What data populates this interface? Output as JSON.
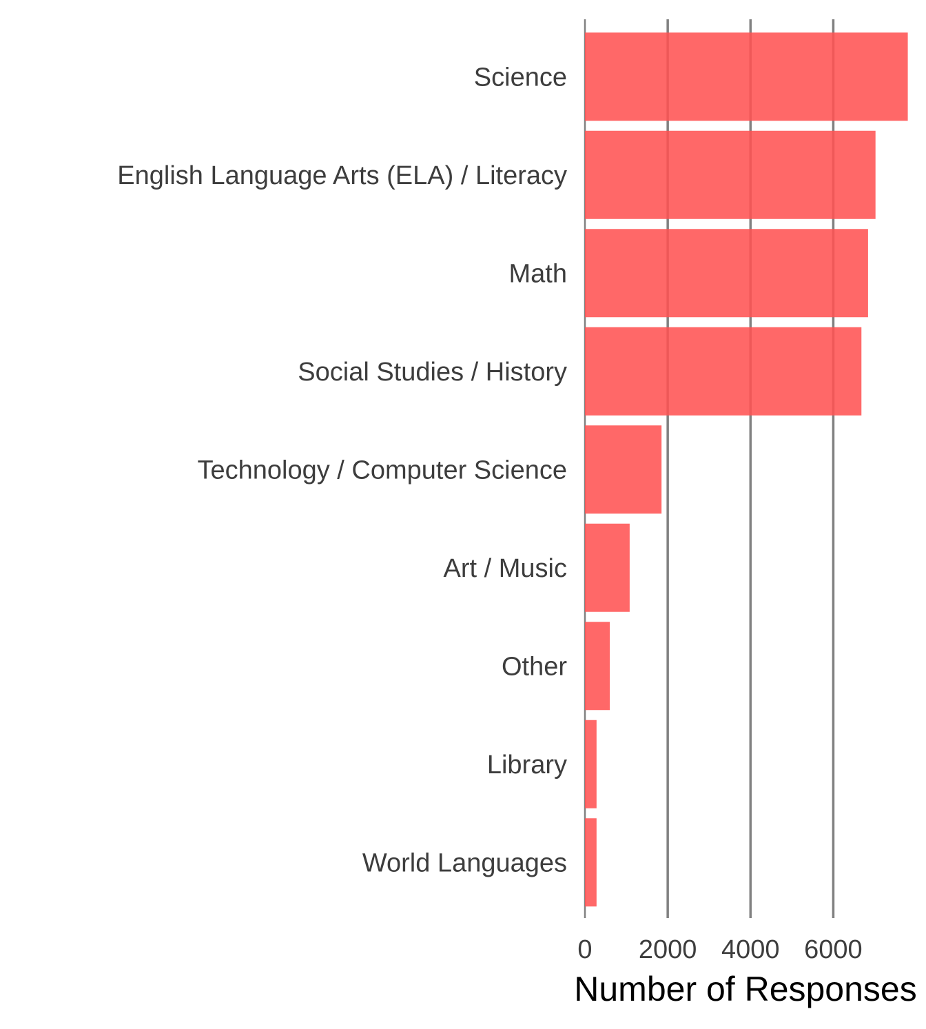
{
  "chart_data": {
    "type": "bar",
    "orientation": "horizontal",
    "categories": [
      "Science",
      "English Language Arts (ELA) / Literacy",
      "Math",
      "Social Studies / History",
      "Technology / Computer Science",
      "Art / Music",
      "Other",
      "Library",
      "World Languages"
    ],
    "values": [
      7800,
      7020,
      6840,
      6680,
      1850,
      1080,
      600,
      280,
      280
    ],
    "title": "",
    "xlabel": "Number of Responses",
    "ylabel": "",
    "xlim": [
      0,
      8240
    ],
    "xticks": [
      0,
      2000,
      4000,
      6000
    ],
    "xtick_labels": [
      "0",
      "2000",
      "4000",
      "6000"
    ],
    "grid": "vertical major",
    "legend": "none",
    "colors": {
      "bar": "#ff5252",
      "grid": "#6b6b6b",
      "text": "#3d3d3d"
    }
  }
}
